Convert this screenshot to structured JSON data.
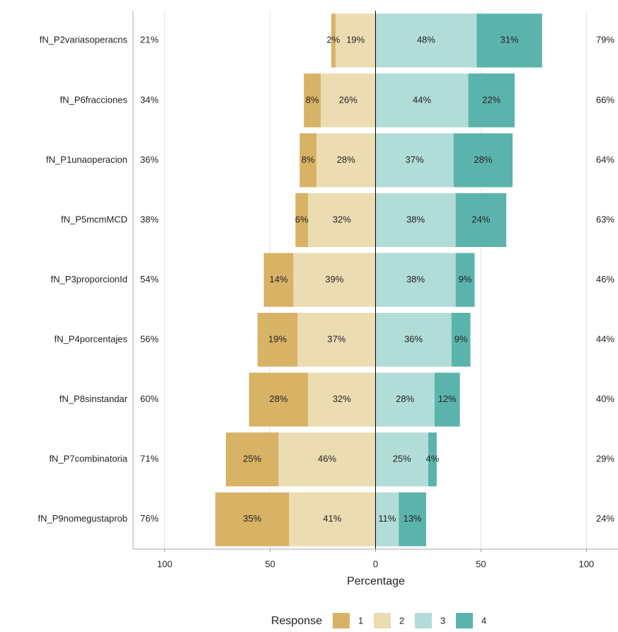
{
  "chart_data": {
    "type": "likert",
    "categories": [
      "fN_P2variasoperacns",
      "fN_P6fracciones",
      "fN_P1unaoperacion",
      "fN_P5mcmMCD",
      "fN_P3proporcionId",
      "fN_P4porcentajes",
      "fN_P8sinstandar",
      "fN_P7combinatoria",
      "fN_P9nomegustaprob"
    ],
    "series": [
      {
        "name": "1",
        "color": "#d8b365",
        "values": [
          2,
          8,
          8,
          6,
          14,
          19,
          28,
          25,
          35
        ],
        "value_labels": [
          "2%",
          "8%",
          "8%",
          "6%",
          "14%",
          "19%",
          "28%",
          "25%",
          "35%"
        ]
      },
      {
        "name": "2",
        "color": "#ecdcb2",
        "values": [
          19,
          26,
          28,
          32,
          39,
          37,
          32,
          46,
          41
        ],
        "value_labels": [
          "19%",
          "26%",
          "28%",
          "32%",
          "39%",
          "37%",
          "32%",
          "46%",
          "41%"
        ]
      },
      {
        "name": "3",
        "color": "#b1dcd7",
        "values": [
          48,
          44,
          37,
          38,
          38,
          36,
          28,
          25,
          11
        ],
        "value_labels": [
          "48%",
          "44%",
          "37%",
          "38%",
          "38%",
          "36%",
          "28%",
          "25%",
          "11%"
        ]
      },
      {
        "name": "4",
        "color": "#5ab4ac",
        "values": [
          31,
          22,
          28,
          24,
          9,
          9,
          12,
          4,
          13
        ],
        "value_labels": [
          "31%",
          "22%",
          "28%",
          "24%",
          "9%",
          "9%",
          "12%",
          "4%",
          "13%"
        ]
      }
    ],
    "left_labels": [
      "21%",
      "34%",
      "36%",
      "38%",
      "54%",
      "56%",
      "60%",
      "71%",
      "76%"
    ],
    "right_labels": [
      "79%",
      "66%",
      "64%",
      "63%",
      "46%",
      "44%",
      "40%",
      "29%",
      "24%"
    ],
    "xlabel": "Percentage",
    "legend_title": "Response",
    "xlim": [
      -115,
      115
    ],
    "xticks": [
      {
        "value": -100,
        "label": "100"
      },
      {
        "value": -50,
        "label": "50"
      },
      0,
      50,
      100
    ],
    "grid": true
  }
}
